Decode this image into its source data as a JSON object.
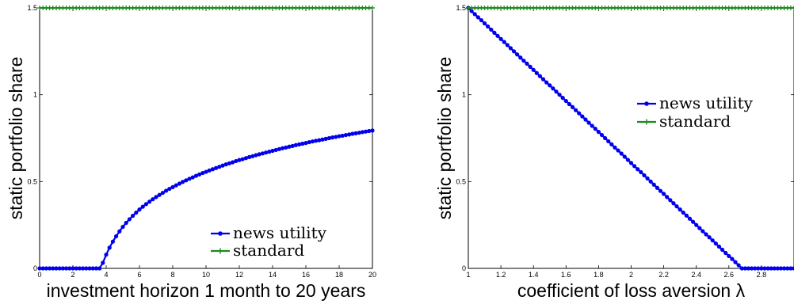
{
  "colors": {
    "news_utility": "#0000ee",
    "standard": "#1e8a1e"
  },
  "chart_data": [
    {
      "type": "line",
      "title": "",
      "xlabel": "investment horizon 1 month to 20 years",
      "ylabel": "static portfolio share",
      "xlim": [
        0,
        20
      ],
      "ylim": [
        0,
        1.5
      ],
      "xticks": [
        0,
        2,
        4,
        6,
        8,
        10,
        12,
        14,
        16,
        18,
        20
      ],
      "xtick_labels": [
        "0",
        "2",
        "4",
        "6",
        "8",
        "10",
        "12",
        "14",
        "16",
        "18",
        "20"
      ],
      "yticks": [
        0,
        0.5,
        1,
        1.5
      ],
      "ytick_labels": [
        "0",
        "0.5",
        "1",
        "1.5"
      ],
      "grid": false,
      "legend_position": "bottom-right",
      "series": [
        {
          "name": "news utility",
          "marker": "dot",
          "color": "#0000ee",
          "x": [
            0.0,
            0.2,
            0.4,
            0.6,
            0.8,
            1.0,
            1.2,
            1.4,
            1.6,
            1.8,
            2.0,
            2.2,
            2.4,
            2.6,
            2.8,
            3.0,
            3.2,
            3.4,
            3.6,
            3.8,
            4.0,
            4.2,
            4.4,
            4.6,
            4.8,
            5.0,
            5.2,
            5.4,
            5.6,
            5.8,
            6.0,
            6.2,
            6.4,
            6.6,
            6.8,
            7.0,
            7.2,
            7.4,
            7.6,
            7.8,
            8.0,
            8.2,
            8.4,
            8.6,
            8.8,
            9.0,
            9.2,
            9.4,
            9.6,
            9.8,
            10.0,
            10.2,
            10.4,
            10.6,
            10.8,
            11.0,
            11.2,
            11.4,
            11.6,
            11.8,
            12.0,
            12.2,
            12.4,
            12.6,
            12.8,
            13.0,
            13.2,
            13.4,
            13.6,
            13.8,
            14.0,
            14.2,
            14.4,
            14.6,
            14.8,
            15.0,
            15.2,
            15.4,
            15.6,
            15.8,
            16.0,
            16.2,
            16.4,
            16.6,
            16.8,
            17.0,
            17.2,
            17.4,
            17.6,
            17.8,
            18.0,
            18.2,
            18.4,
            18.6,
            18.8,
            19.0,
            19.2,
            19.4,
            19.6,
            19.8,
            20.0
          ],
          "y": [
            0.0,
            0.0,
            0.0,
            0.0,
            0.0,
            0.0,
            0.0,
            0.0,
            0.0,
            0.0,
            0.0,
            0.0,
            0.0,
            0.0,
            0.0,
            0.0,
            0.0,
            0.0,
            0.0,
            0.032,
            0.079,
            0.119,
            0.154,
            0.185,
            0.213,
            0.239,
            0.262,
            0.283,
            0.303,
            0.321,
            0.339,
            0.355,
            0.37,
            0.384,
            0.398,
            0.411,
            0.423,
            0.435,
            0.447,
            0.458,
            0.468,
            0.478,
            0.488,
            0.498,
            0.507,
            0.516,
            0.524,
            0.533,
            0.541,
            0.549,
            0.556,
            0.564,
            0.571,
            0.578,
            0.585,
            0.592,
            0.599,
            0.605,
            0.611,
            0.618,
            0.624,
            0.629,
            0.635,
            0.641,
            0.646,
            0.652,
            0.657,
            0.662,
            0.667,
            0.672,
            0.677,
            0.682,
            0.687,
            0.692,
            0.696,
            0.701,
            0.705,
            0.71,
            0.714,
            0.718,
            0.722,
            0.727,
            0.731,
            0.735,
            0.738,
            0.742,
            0.746,
            0.75,
            0.754,
            0.757,
            0.761,
            0.764,
            0.768,
            0.771,
            0.775,
            0.778,
            0.781,
            0.785,
            0.788,
            0.791,
            0.794
          ]
        },
        {
          "name": "standard",
          "marker": "plus",
          "color": "#1e8a1e",
          "x": [
            0.0,
            0.2,
            0.4,
            0.6,
            0.8,
            1.0,
            1.2,
            1.4,
            1.6,
            1.8,
            2.0,
            2.2,
            2.4,
            2.6,
            2.8,
            3.0,
            3.2,
            3.4,
            3.6,
            3.8,
            4.0,
            4.2,
            4.4,
            4.6,
            4.8,
            5.0,
            5.2,
            5.4,
            5.6,
            5.8,
            6.0,
            6.2,
            6.4,
            6.6,
            6.8,
            7.0,
            7.2,
            7.4,
            7.6,
            7.8,
            8.0,
            8.2,
            8.4,
            8.6,
            8.8,
            9.0,
            9.2,
            9.4,
            9.6,
            9.8,
            10.0,
            10.2,
            10.4,
            10.6,
            10.8,
            11.0,
            11.2,
            11.4,
            11.6,
            11.8,
            12.0,
            12.2,
            12.4,
            12.6,
            12.8,
            13.0,
            13.2,
            13.4,
            13.6,
            13.8,
            14.0,
            14.2,
            14.4,
            14.6,
            14.8,
            15.0,
            15.2,
            15.4,
            15.6,
            15.8,
            16.0,
            16.2,
            16.4,
            16.6,
            16.8,
            17.0,
            17.2,
            17.4,
            17.6,
            17.8,
            18.0,
            18.2,
            18.4,
            18.6,
            18.8,
            19.0,
            19.2,
            19.4,
            19.6,
            19.8,
            20.0
          ],
          "y": [
            1.5,
            1.5,
            1.5,
            1.5,
            1.5,
            1.5,
            1.5,
            1.5,
            1.5,
            1.5,
            1.5,
            1.5,
            1.5,
            1.5,
            1.5,
            1.5,
            1.5,
            1.5,
            1.5,
            1.5,
            1.5,
            1.5,
            1.5,
            1.5,
            1.5,
            1.5,
            1.5,
            1.5,
            1.5,
            1.5,
            1.5,
            1.5,
            1.5,
            1.5,
            1.5,
            1.5,
            1.5,
            1.5,
            1.5,
            1.5,
            1.5,
            1.5,
            1.5,
            1.5,
            1.5,
            1.5,
            1.5,
            1.5,
            1.5,
            1.5,
            1.5,
            1.5,
            1.5,
            1.5,
            1.5,
            1.5,
            1.5,
            1.5,
            1.5,
            1.5,
            1.5,
            1.5,
            1.5,
            1.5,
            1.5,
            1.5,
            1.5,
            1.5,
            1.5,
            1.5,
            1.5,
            1.5,
            1.5,
            1.5,
            1.5,
            1.5,
            1.5,
            1.5,
            1.5,
            1.5,
            1.5,
            1.5,
            1.5,
            1.5,
            1.5,
            1.5,
            1.5,
            1.5,
            1.5,
            1.5,
            1.5,
            1.5,
            1.5,
            1.5,
            1.5,
            1.5,
            1.5,
            1.5,
            1.5,
            1.5,
            1.5
          ]
        }
      ]
    },
    {
      "type": "line",
      "title": "",
      "xlabel": "coefficient of loss aversion λ",
      "ylabel": "static portfolio share",
      "xlim": [
        1,
        3
      ],
      "ylim": [
        0,
        1.5
      ],
      "xticks": [
        1,
        1.2,
        1.4,
        1.6,
        1.8,
        2,
        2.2,
        2.4,
        2.6,
        2.8
      ],
      "xtick_labels": [
        "1",
        "1.2",
        "1.4",
        "1.6",
        "1.8",
        "2",
        "2.2",
        "2.4",
        "2.6",
        "2.8"
      ],
      "yticks": [
        0,
        0.5,
        1,
        1.5
      ],
      "ytick_labels": [
        "0",
        "0.5",
        "1",
        "1.5"
      ],
      "grid": false,
      "legend_position": "upper-right",
      "series": [
        {
          "name": "news utility",
          "marker": "dot",
          "color": "#0000ee",
          "x": [
            1.0,
            1.02,
            1.04,
            1.06,
            1.08,
            1.1,
            1.12,
            1.14,
            1.16,
            1.18,
            1.2,
            1.22,
            1.24,
            1.26,
            1.28,
            1.3,
            1.32,
            1.34,
            1.36,
            1.38,
            1.4,
            1.42,
            1.44,
            1.46,
            1.48,
            1.5,
            1.52,
            1.54,
            1.56,
            1.58,
            1.6,
            1.62,
            1.64,
            1.66,
            1.68,
            1.7,
            1.72,
            1.74,
            1.76,
            1.78,
            1.8,
            1.82,
            1.84,
            1.86,
            1.88,
            1.9,
            1.92,
            1.94,
            1.96,
            1.98,
            2.0,
            2.02,
            2.04,
            2.06,
            2.08,
            2.1,
            2.12,
            2.14,
            2.16,
            2.18,
            2.2,
            2.22,
            2.24,
            2.26,
            2.28,
            2.3,
            2.32,
            2.34,
            2.36,
            2.38,
            2.4,
            2.42,
            2.44,
            2.46,
            2.48,
            2.5,
            2.52,
            2.54,
            2.56,
            2.58,
            2.6,
            2.62,
            2.64,
            2.66,
            2.68,
            2.7,
            2.72,
            2.74,
            2.76,
            2.78,
            2.8,
            2.82,
            2.84,
            2.86,
            2.88,
            2.9,
            2.92,
            2.94,
            2.96,
            2.98,
            3.0
          ],
          "y": [
            1.5,
            1.482,
            1.464,
            1.446,
            1.429,
            1.411,
            1.393,
            1.375,
            1.357,
            1.339,
            1.321,
            1.304,
            1.286,
            1.268,
            1.25,
            1.232,
            1.214,
            1.196,
            1.179,
            1.161,
            1.143,
            1.125,
            1.107,
            1.089,
            1.071,
            1.054,
            1.036,
            1.018,
            1.0,
            0.982,
            0.964,
            0.946,
            0.929,
            0.911,
            0.893,
            0.875,
            0.857,
            0.839,
            0.821,
            0.804,
            0.786,
            0.768,
            0.75,
            0.732,
            0.714,
            0.696,
            0.679,
            0.661,
            0.643,
            0.625,
            0.607,
            0.589,
            0.571,
            0.554,
            0.536,
            0.518,
            0.5,
            0.482,
            0.464,
            0.446,
            0.429,
            0.411,
            0.393,
            0.375,
            0.357,
            0.339,
            0.321,
            0.304,
            0.286,
            0.268,
            0.25,
            0.232,
            0.214,
            0.196,
            0.179,
            0.161,
            0.143,
            0.125,
            0.107,
            0.089,
            0.071,
            0.054,
            0.036,
            0.018,
            0.0,
            0.0,
            0.0,
            0.0,
            0.0,
            0.0,
            0.0,
            0.0,
            0.0,
            0.0,
            0.0,
            0.0,
            0.0,
            0.0,
            0.0,
            0.0,
            0.0
          ]
        },
        {
          "name": "standard",
          "marker": "plus",
          "color": "#1e8a1e",
          "x": [
            1.0,
            1.02,
            1.04,
            1.06,
            1.08,
            1.1,
            1.12,
            1.14,
            1.16,
            1.18,
            1.2,
            1.22,
            1.24,
            1.26,
            1.28,
            1.3,
            1.32,
            1.34,
            1.36,
            1.38,
            1.4,
            1.42,
            1.44,
            1.46,
            1.48,
            1.5,
            1.52,
            1.54,
            1.56,
            1.58,
            1.6,
            1.62,
            1.64,
            1.66,
            1.68,
            1.7,
            1.72,
            1.74,
            1.76,
            1.78,
            1.8,
            1.82,
            1.84,
            1.86,
            1.88,
            1.9,
            1.92,
            1.94,
            1.96,
            1.98,
            2.0,
            2.02,
            2.04,
            2.06,
            2.08,
            2.1,
            2.12,
            2.14,
            2.16,
            2.18,
            2.2,
            2.22,
            2.24,
            2.26,
            2.28,
            2.3,
            2.32,
            2.34,
            2.36,
            2.38,
            2.4,
            2.42,
            2.44,
            2.46,
            2.48,
            2.5,
            2.52,
            2.54,
            2.56,
            2.58,
            2.6,
            2.62,
            2.64,
            2.66,
            2.68,
            2.7,
            2.72,
            2.74,
            2.76,
            2.78,
            2.8,
            2.82,
            2.84,
            2.86,
            2.88,
            2.9,
            2.92,
            2.94,
            2.96,
            2.98,
            3.0
          ],
          "y": [
            1.5,
            1.5,
            1.5,
            1.5,
            1.5,
            1.5,
            1.5,
            1.5,
            1.5,
            1.5,
            1.5,
            1.5,
            1.5,
            1.5,
            1.5,
            1.5,
            1.5,
            1.5,
            1.5,
            1.5,
            1.5,
            1.5,
            1.5,
            1.5,
            1.5,
            1.5,
            1.5,
            1.5,
            1.5,
            1.5,
            1.5,
            1.5,
            1.5,
            1.5,
            1.5,
            1.5,
            1.5,
            1.5,
            1.5,
            1.5,
            1.5,
            1.5,
            1.5,
            1.5,
            1.5,
            1.5,
            1.5,
            1.5,
            1.5,
            1.5,
            1.5,
            1.5,
            1.5,
            1.5,
            1.5,
            1.5,
            1.5,
            1.5,
            1.5,
            1.5,
            1.5,
            1.5,
            1.5,
            1.5,
            1.5,
            1.5,
            1.5,
            1.5,
            1.5,
            1.5,
            1.5,
            1.5,
            1.5,
            1.5,
            1.5,
            1.5,
            1.5,
            1.5,
            1.5,
            1.5,
            1.5,
            1.5,
            1.5,
            1.5,
            1.5,
            1.5,
            1.5,
            1.5,
            1.5,
            1.5,
            1.5,
            1.5,
            1.5,
            1.5,
            1.5,
            1.5,
            1.5,
            1.5,
            1.5,
            1.5,
            1.5
          ]
        }
      ]
    }
  ]
}
